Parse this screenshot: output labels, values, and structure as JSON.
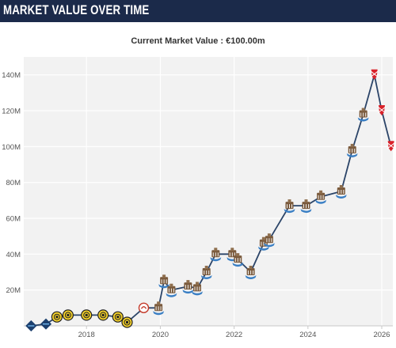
{
  "header": {
    "title": "MARKET VALUE OVER TIME"
  },
  "subtitle": "Current Market Value : €100.00m",
  "colors": {
    "header_bg": "#1b2a4a",
    "line": "#2b4468",
    "plot_bg": "#f2f2f2",
    "grid": "#ffffff",
    "axis": "#c8c8c8",
    "badge_dortmund": "#f4d12a",
    "badge_newcastle": "#7a5a3c",
    "badge_liverpool": "#d9222a"
  },
  "chart_data": {
    "type": "line",
    "title": "Current Market Value : €100.00m",
    "xlabel": "",
    "ylabel": "",
    "xlim": [
      2016.3,
      2026.3
    ],
    "ylim": [
      0,
      150
    ],
    "x_ticks": [
      2018,
      2020,
      2022,
      2024,
      2026
    ],
    "x_tick_labels": [
      "2018",
      "2020",
      "2022",
      "2024",
      "2026"
    ],
    "y_ticks": [
      20,
      40,
      60,
      80,
      100,
      120,
      140
    ],
    "y_tick_labels": [
      "20M",
      "40M",
      "60M",
      "80M",
      "100M",
      "120M",
      "140M"
    ],
    "grid": true,
    "legend": "none",
    "series": [
      {
        "x": [
          2016.5,
          2016.9,
          2017.2,
          2017.5,
          2018.0,
          2018.45,
          2018.85,
          2019.1,
          2019.55,
          2019.95,
          2020.1,
          2020.3,
          2020.75,
          2021.0,
          2021.25,
          2021.5,
          2021.95,
          2022.1,
          2022.45,
          2022.8,
          2022.95,
          2023.5,
          2023.95,
          2024.35,
          2024.9,
          2025.2,
          2025.5,
          2025.8,
          2026.0,
          2026.25
        ],
        "y": [
          0,
          1,
          5,
          6,
          6,
          6,
          5,
          2,
          10,
          10,
          25,
          20,
          22,
          21,
          30,
          40,
          40,
          37,
          30,
          46,
          48,
          67,
          67,
          72,
          75,
          98,
          118,
          140,
          120,
          100
        ],
        "badges": [
          "slovan",
          "slovan",
          "dortmund",
          "dortmund",
          "dortmund",
          "dortmund",
          "dortmund",
          "dortmund",
          "salzburg",
          "newcastle",
          "newcastle",
          "newcastle",
          "newcastle",
          "newcastle",
          "newcastle",
          "newcastle",
          "newcastle",
          "newcastle",
          "newcastle",
          "newcastle",
          "newcastle",
          "newcastle",
          "newcastle",
          "newcastle",
          "newcastle",
          "newcastle",
          "newcastle",
          "liverpool",
          "liverpool",
          "liverpool"
        ]
      }
    ]
  }
}
